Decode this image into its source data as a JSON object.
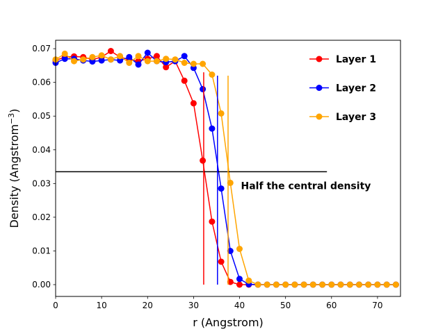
{
  "chart_data": {
    "type": "line",
    "xlabel": "r (Angstrom)",
    "ylabel": "Density (Angstrom",
    "ylabel_exponent": "−3",
    "ylabel_close": ")",
    "xlim": [
      0,
      75
    ],
    "ylim": [
      -0.0035,
      0.0725
    ],
    "x_ticks": [
      0,
      10,
      20,
      30,
      40,
      50,
      60,
      70
    ],
    "x_tick_labels": [
      "0",
      "10",
      "20",
      "30",
      "40",
      "50",
      "60",
      "70"
    ],
    "y_ticks": [
      0.0,
      0.01,
      0.02,
      0.03,
      0.04,
      0.05,
      0.06,
      0.07
    ],
    "y_tick_labels": [
      "0.00",
      "0.01",
      "0.02",
      "0.03",
      "0.04",
      "0.05",
      "0.06",
      "0.07"
    ],
    "grid": false,
    "legend_position": "top-right",
    "series": [
      {
        "name": "Layer 1",
        "color": "#ff0000",
        "x": [
          0,
          2,
          4,
          6,
          8,
          10,
          12,
          14,
          16,
          18,
          20,
          22,
          24,
          26,
          28,
          30,
          32,
          34,
          36,
          38,
          40,
          42,
          44,
          46,
          48,
          50,
          52,
          54,
          56,
          58,
          60,
          62,
          64,
          66,
          68,
          70,
          72,
          74
        ],
        "y": [
          0.0665,
          0.0675,
          0.0677,
          0.0675,
          0.0668,
          0.0675,
          0.0693,
          0.0675,
          0.0668,
          0.0663,
          0.067,
          0.0678,
          0.0645,
          0.0663,
          0.0605,
          0.0538,
          0.0368,
          0.0187,
          0.0068,
          0.0008,
          0.0,
          0.0,
          0.0,
          0.0,
          0.0,
          0.0,
          0.0,
          0.0,
          0.0,
          0.0,
          0.0,
          0.0,
          0.0,
          0.0,
          0.0,
          0.0,
          0.0,
          0.0
        ]
      },
      {
        "name": "Layer 2",
        "color": "#0000ff",
        "x": [
          0,
          2,
          4,
          6,
          8,
          10,
          12,
          14,
          16,
          18,
          20,
          22,
          24,
          26,
          28,
          30,
          32,
          34,
          36,
          38,
          40,
          42,
          44,
          46,
          48,
          50,
          52,
          54,
          56,
          58,
          60,
          62,
          64,
          66,
          68,
          70,
          72,
          74
        ],
        "y": [
          0.0658,
          0.067,
          0.067,
          0.0665,
          0.0662,
          0.0665,
          0.0668,
          0.0665,
          0.0675,
          0.0653,
          0.0688,
          0.0663,
          0.066,
          0.0663,
          0.0678,
          0.0643,
          0.058,
          0.0463,
          0.0285,
          0.01,
          0.0017,
          0.0001,
          0.0,
          0.0,
          0.0,
          0.0,
          0.0,
          0.0,
          0.0,
          0.0,
          0.0,
          0.0,
          0.0,
          0.0,
          0.0,
          0.0,
          0.0,
          0.0
        ]
      },
      {
        "name": "Layer 3",
        "color": "#ffa500",
        "x": [
          0,
          2,
          4,
          6,
          8,
          10,
          12,
          14,
          16,
          18,
          20,
          22,
          24,
          26,
          28,
          30,
          32,
          34,
          36,
          38,
          40,
          42,
          44,
          46,
          48,
          50,
          52,
          54,
          56,
          58,
          60,
          62,
          64,
          66,
          68,
          70,
          72,
          74
        ],
        "y": [
          0.0668,
          0.0685,
          0.0663,
          0.0668,
          0.0675,
          0.068,
          0.0668,
          0.0678,
          0.0658,
          0.0678,
          0.0663,
          0.0663,
          0.067,
          0.0668,
          0.0658,
          0.0655,
          0.0655,
          0.0623,
          0.0508,
          0.0302,
          0.0106,
          0.0012,
          0.0,
          0.0,
          0.0,
          0.0,
          0.0,
          0.0,
          0.0,
          0.0,
          0.0,
          0.0,
          0.0,
          0.0,
          0.0,
          0.0,
          0.0,
          0.0
        ]
      }
    ],
    "half_density_line": {
      "y": 0.0335,
      "x_start": 0,
      "x_end": 59,
      "color": "#000000"
    },
    "vertical_markers": [
      {
        "x": 32.2,
        "y_start": 0.0,
        "y_end": 0.063,
        "color": "#ff0000"
      },
      {
        "x": 35.2,
        "y_start": 0.0,
        "y_end": 0.062,
        "color": "#0000ff"
      },
      {
        "x": 37.5,
        "y_start": 0.0,
        "y_end": 0.062,
        "color": "#ffa500"
      }
    ],
    "annotation": "Half the central density"
  }
}
